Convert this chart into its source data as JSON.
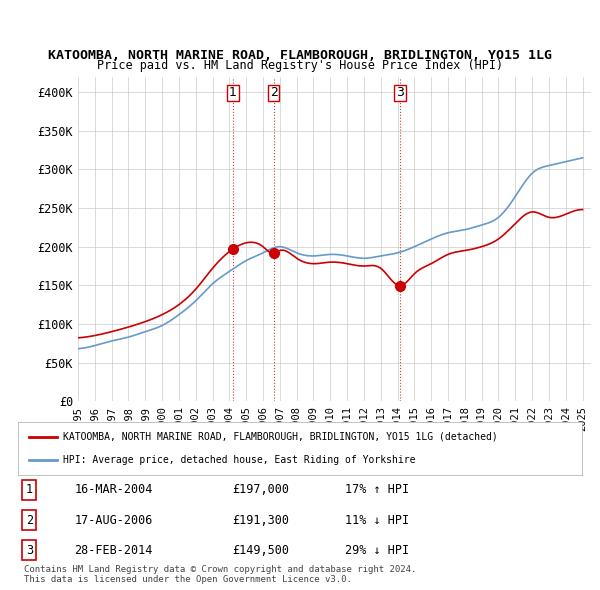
{
  "title": "KATOOMBA, NORTH MARINE ROAD, FLAMBOROUGH, BRIDLINGTON, YO15 1LG",
  "subtitle": "Price paid vs. HM Land Registry's House Price Index (HPI)",
  "property_color": "#cc0000",
  "hpi_color": "#6699cc",
  "background_color": "#ffffff",
  "plot_bg_color": "#ffffff",
  "grid_color": "#cccccc",
  "ylim": [
    0,
    420000
  ],
  "yticks": [
    0,
    50000,
    100000,
    150000,
    200000,
    250000,
    300000,
    350000,
    400000
  ],
  "ytick_labels": [
    "£0",
    "£50K",
    "£100K",
    "£150K",
    "£200K",
    "£250K",
    "£300K",
    "£350K",
    "£400K"
  ],
  "sale_points": [
    {
      "year": 2004.21,
      "price": 197000,
      "label": "1"
    },
    {
      "year": 2006.63,
      "price": 191300,
      "label": "2"
    },
    {
      "year": 2014.16,
      "price": 149500,
      "label": "3"
    }
  ],
  "vline_color": "#cc0000",
  "vline_style": ":",
  "table_rows": [
    {
      "num": "1",
      "date": "16-MAR-2004",
      "price": "£197,000",
      "hpi": "17% ↑ HPI"
    },
    {
      "num": "2",
      "date": "17-AUG-2006",
      "price": "£191,300",
      "hpi": "11% ↓ HPI"
    },
    {
      "num": "3",
      "date": "28-FEB-2014",
      "price": "£149,500",
      "hpi": "29% ↓ HPI"
    }
  ],
  "legend_label_property": "KATOOMBA, NORTH MARINE ROAD, FLAMBOROUGH, BRIDLINGTON, YO15 1LG (detached)",
  "legend_label_hpi": "HPI: Average price, detached house, East Riding of Yorkshire",
  "footnote": "Contains HM Land Registry data © Crown copyright and database right 2024.\nThis data is licensed under the Open Government Licence v3.0.",
  "xmin": 1995,
  "xmax": 2025.5
}
